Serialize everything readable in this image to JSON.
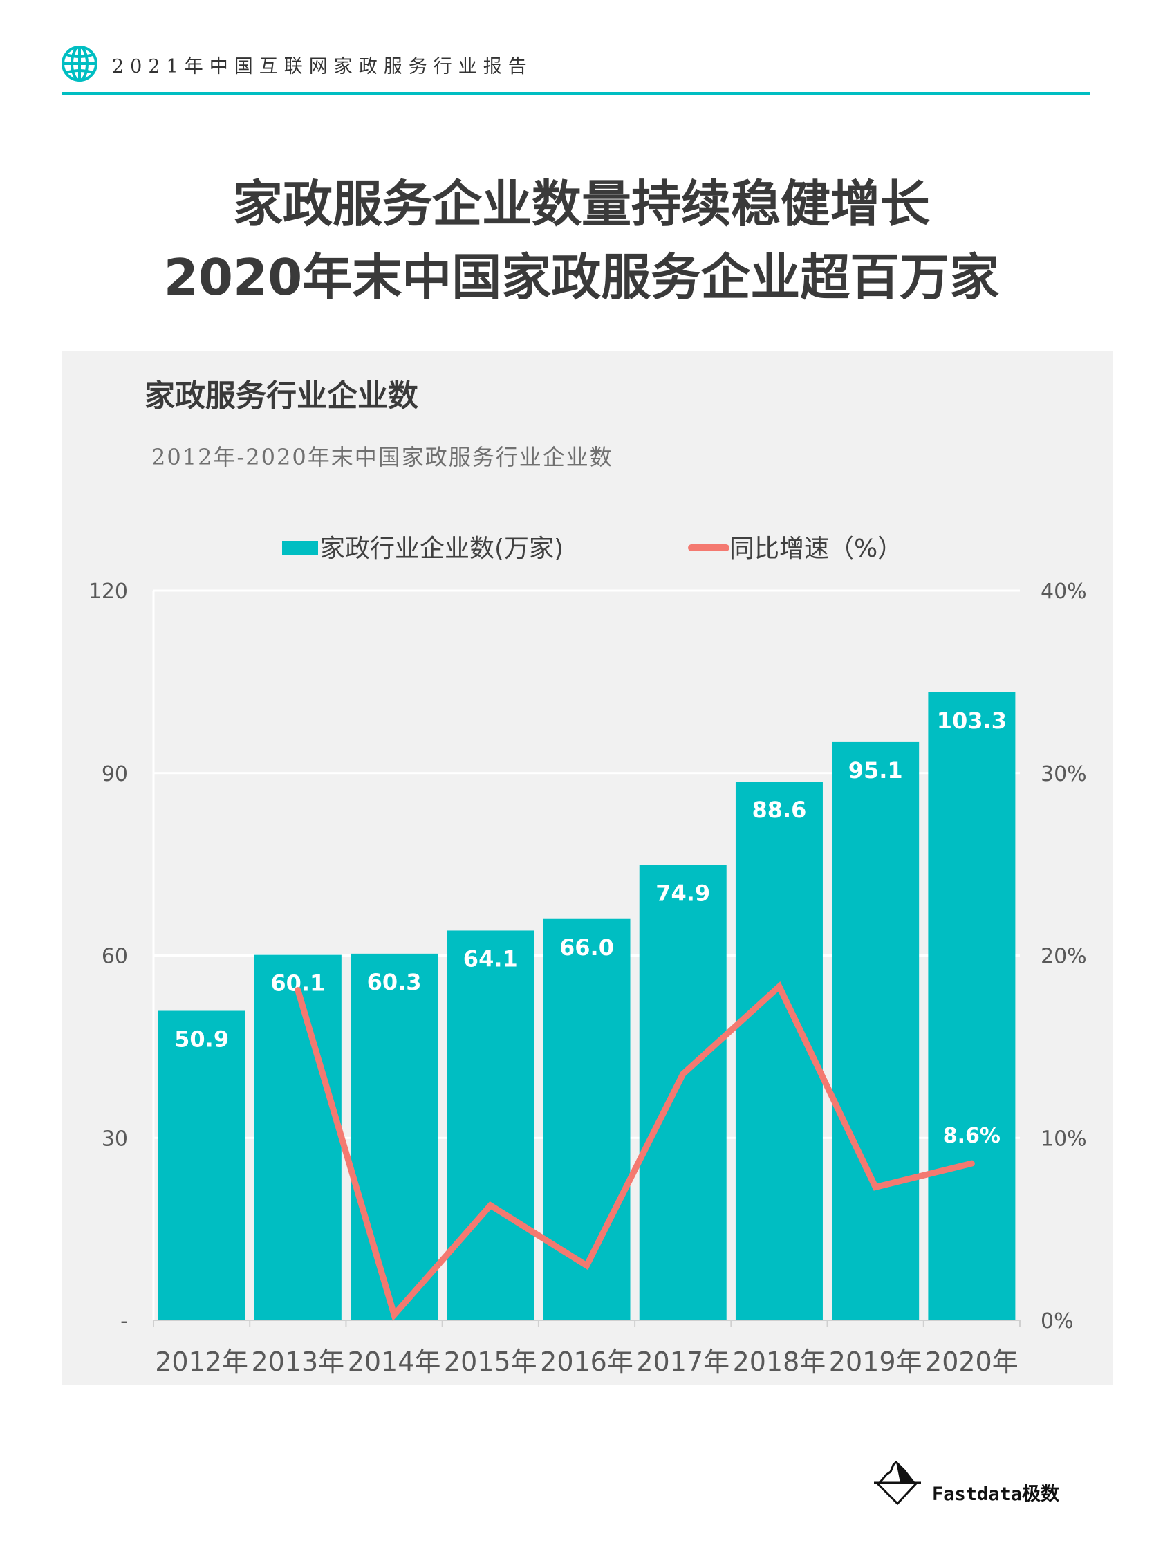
{
  "header": {
    "text": "2021年中国互联网家政服务行业报告",
    "icon": "globe-icon",
    "accent": "#00BEC2"
  },
  "title": {
    "line1": "家政服务企业数量持续稳健增长",
    "line2": "2020年末中国家政服务企业超百万家"
  },
  "chart_data": {
    "type": "bar+line",
    "title": "家政服务行业企业数",
    "subtitle": "2012年-2020年末中国家政服务行业企业数",
    "categories": [
      "2012年",
      "2013年",
      "2014年",
      "2015年",
      "2016年",
      "2017年",
      "2018年",
      "2019年",
      "2020年"
    ],
    "series": [
      {
        "name": "家政行业企业数(万家)",
        "type": "bar",
        "axis": "left",
        "color": "#00BEC2",
        "values": [
          50.9,
          60.1,
          60.3,
          64.1,
          66.0,
          74.9,
          88.6,
          95.1,
          103.3
        ],
        "labels": [
          "50.9",
          "60.1",
          "60.3",
          "64.1",
          "66.0",
          "74.9",
          "88.6",
          "95.1",
          "103.3"
        ]
      },
      {
        "name": "同比增速（%）",
        "type": "line",
        "axis": "right",
        "color": "#F47970",
        "values": [
          null,
          18.1,
          0.3,
          6.3,
          3.0,
          13.5,
          18.3,
          7.3,
          8.6
        ],
        "labels": [
          null,
          null,
          null,
          null,
          null,
          null,
          null,
          null,
          "8.6%"
        ]
      }
    ],
    "left_axis": {
      "ylim": [
        0,
        120
      ],
      "ticks": [
        "-",
        "30",
        "60",
        "90",
        "120"
      ]
    },
    "right_axis": {
      "ylim": [
        0,
        40
      ],
      "ticks": [
        "0%",
        "10%",
        "20%",
        "30%",
        "40%"
      ]
    },
    "grid": true,
    "legend": "top"
  },
  "footer": {
    "logo_text": "Fastdata极数"
  }
}
